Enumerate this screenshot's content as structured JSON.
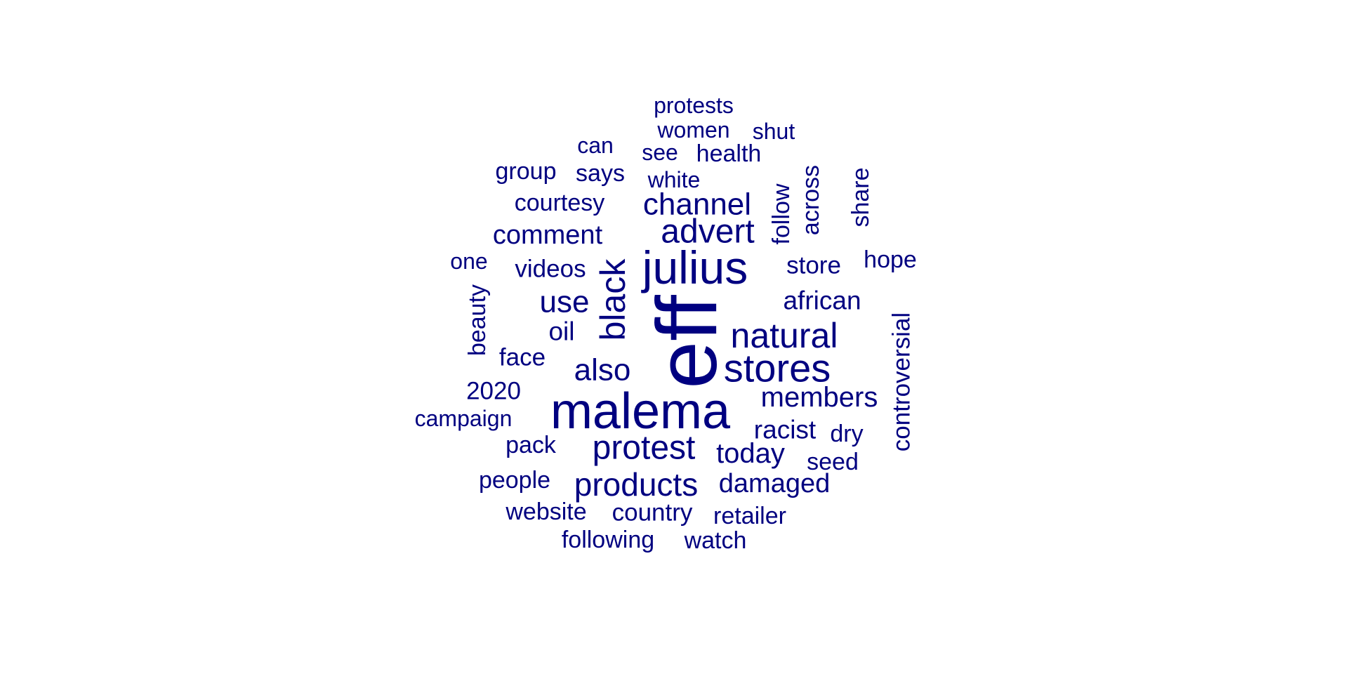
{
  "chart_data": {
    "type": "wordcloud",
    "color": "#000080",
    "background": "#ffffff",
    "words": [
      {
        "text": "eff",
        "weight": 10
      },
      {
        "text": "malema",
        "weight": 7
      },
      {
        "text": "julius",
        "weight": 6.5
      },
      {
        "text": "stores",
        "weight": 5
      },
      {
        "text": "natural",
        "weight": 4.6
      },
      {
        "text": "black",
        "weight": 4.6
      },
      {
        "text": "protest",
        "weight": 4.6
      },
      {
        "text": "advert",
        "weight": 4.4
      },
      {
        "text": "products",
        "weight": 4.2
      },
      {
        "text": "channel",
        "weight": 4
      },
      {
        "text": "use",
        "weight": 4
      },
      {
        "text": "also",
        "weight": 4
      },
      {
        "text": "members",
        "weight": 3.9
      },
      {
        "text": "today",
        "weight": 3.9
      },
      {
        "text": "comment",
        "weight": 3.6
      },
      {
        "text": "damaged",
        "weight": 3.6
      },
      {
        "text": "african",
        "weight": 3.5
      },
      {
        "text": "racist",
        "weight": 3.5
      },
      {
        "text": "oil",
        "weight": 3.5
      },
      {
        "text": "videos",
        "weight": 3.3
      },
      {
        "text": "face",
        "weight": 3.3
      },
      {
        "text": "2020",
        "weight": 3.3
      },
      {
        "text": "store",
        "weight": 3.3
      },
      {
        "text": "country",
        "weight": 3.3
      },
      {
        "text": "controversial",
        "weight": 3.3
      },
      {
        "text": "courtesy",
        "weight": 3.1
      },
      {
        "text": "says",
        "weight": 3.1
      },
      {
        "text": "group",
        "weight": 3.1
      },
      {
        "text": "health",
        "weight": 3.1
      },
      {
        "text": "dry",
        "weight": 3.1
      },
      {
        "text": "pack",
        "weight": 3.1
      },
      {
        "text": "people",
        "weight": 3.1
      },
      {
        "text": "website",
        "weight": 3.1
      },
      {
        "text": "retailer",
        "weight": 3.1
      },
      {
        "text": "following",
        "weight": 3.1
      },
      {
        "text": "watch",
        "weight": 3.1
      },
      {
        "text": "seed",
        "weight": 3.1
      },
      {
        "text": "hope",
        "weight": 3.1
      },
      {
        "text": "beauty",
        "weight": 3.1
      },
      {
        "text": "follow",
        "weight": 3.1
      },
      {
        "text": "across",
        "weight": 3.1
      },
      {
        "text": "share",
        "weight": 3.1
      },
      {
        "text": "protests",
        "weight": 3
      },
      {
        "text": "women",
        "weight": 3
      },
      {
        "text": "shut",
        "weight": 3
      },
      {
        "text": "can",
        "weight": 3
      },
      {
        "text": "see",
        "weight": 3
      },
      {
        "text": "white",
        "weight": 3
      },
      {
        "text": "one",
        "weight": 3
      },
      {
        "text": "campaign",
        "weight": 3
      }
    ]
  }
}
